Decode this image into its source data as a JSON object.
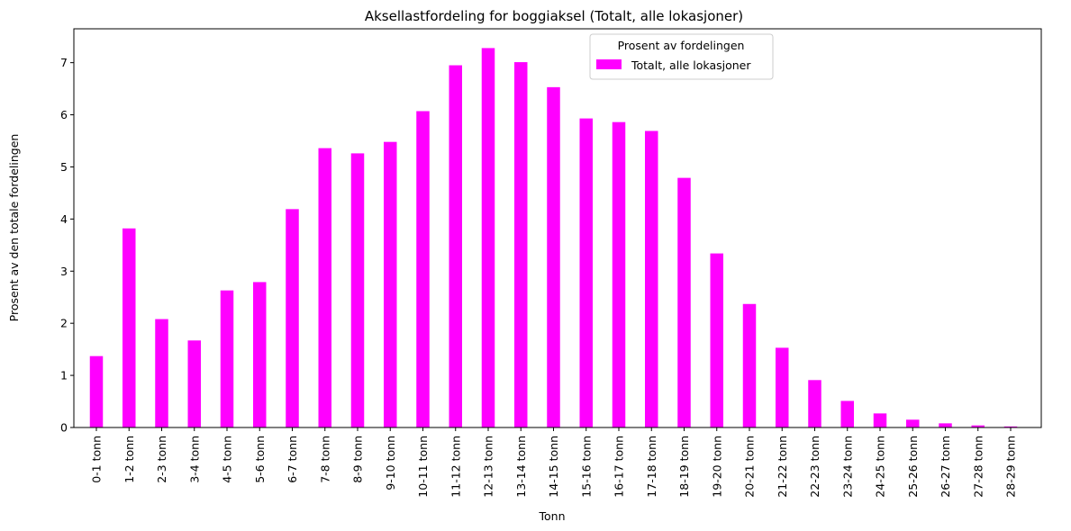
{
  "chart_data": {
    "type": "bar",
    "title": "Aksellastfordeling for boggiaksel (Totalt, alle lokasjoner)",
    "xlabel": "Tonn",
    "ylabel": "Prosent av den totale fordelingen",
    "ylim": [
      0,
      7.65
    ],
    "yticks": [
      "0",
      "1",
      "2",
      "3",
      "4",
      "5",
      "6",
      "7"
    ],
    "grid": false,
    "legend": {
      "title": "Prosent av fordelingen",
      "placement": "upper-center"
    },
    "categories": [
      "0-1 tonn",
      "1-2 tonn",
      "2-3 tonn",
      "3-4 tonn",
      "4-5 tonn",
      "5-6 tonn",
      "6-7 tonn",
      "7-8 tonn",
      "8-9 tonn",
      "9-10 tonn",
      "10-11 tonn",
      "11-12 tonn",
      "12-13 tonn",
      "13-14 tonn",
      "14-15 tonn",
      "15-16 tonn",
      "16-17 tonn",
      "17-18 tonn",
      "18-19 tonn",
      "19-20 tonn",
      "20-21 tonn",
      "21-22 tonn",
      "22-23 tonn",
      "23-24 tonn",
      "24-25 tonn",
      "25-26 tonn",
      "26-27 tonn",
      "27-28 tonn",
      "28-29 tonn"
    ],
    "series": [
      {
        "name": "Totalt, alle lokasjoner",
        "color": "#ff00ff",
        "values": [
          1.37,
          3.82,
          2.08,
          1.67,
          2.63,
          2.79,
          4.19,
          5.36,
          5.26,
          5.48,
          6.07,
          6.95,
          7.28,
          7.01,
          6.53,
          5.93,
          5.86,
          5.69,
          4.79,
          3.34,
          2.37,
          1.53,
          0.91,
          0.51,
          0.27,
          0.15,
          0.08,
          0.04,
          0.02
        ]
      }
    ]
  }
}
